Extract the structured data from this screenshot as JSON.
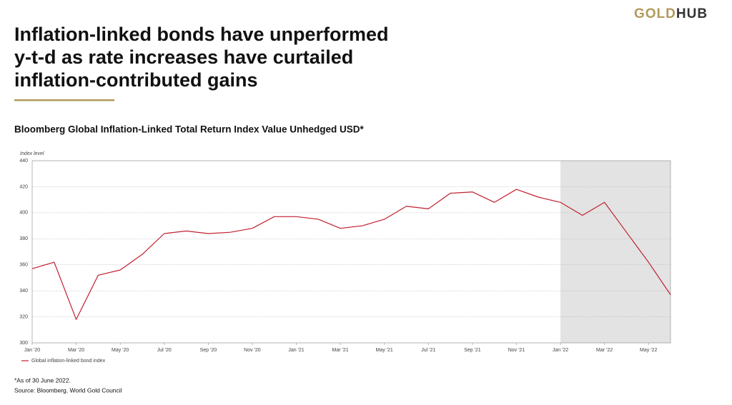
{
  "logo": [
    "GOLD",
    "HUB"
  ],
  "chart_data": {
    "type": "line",
    "title": [
      "Inflation-linked bonds have unperformed",
      "y-t-d as rate increases have curtailed",
      "inflation-contributed gains"
    ],
    "subtitle": "Bloomberg Global Inflation-Linked Total Return Index Value Unhedged USD*",
    "y_label": "Index level",
    "x": [
      "2020-01",
      "2020-02",
      "2020-03",
      "2020-04",
      "2020-05",
      "2020-06",
      "2020-07",
      "2020-08",
      "2020-09",
      "2020-10",
      "2020-11",
      "2020-12",
      "2021-01",
      "2021-02",
      "2021-03",
      "2021-04",
      "2021-05",
      "2021-06",
      "2021-07",
      "2021-08",
      "2021-09",
      "2021-10",
      "2021-11",
      "2021-12",
      "2022-01",
      "2022-02",
      "2022-03",
      "2022-04",
      "2022-05",
      "2022-06"
    ],
    "series": [
      {
        "name": "Global inflation-linked bond index",
        "color": "#c0202e",
        "values": [
          357,
          362,
          318,
          352,
          356,
          368,
          384,
          386,
          384,
          385,
          388,
          397,
          397,
          395,
          388,
          390,
          395,
          405,
          403,
          415,
          416,
          408,
          418,
          412,
          408,
          398,
          408,
          385,
          362,
          337
        ]
      }
    ],
    "xlim": [
      "2020-01",
      "2022-06"
    ],
    "xticks": [
      {
        "value": "2020-01",
        "label": "Jan '20"
      },
      {
        "value": "2020-03",
        "label": "Mar '20"
      },
      {
        "value": "2020-05",
        "label": "May '20"
      },
      {
        "value": "2020-07",
        "label": "Jul '20"
      },
      {
        "value": "2020-09",
        "label": "Sep '20"
      },
      {
        "value": "2020-11",
        "label": "Nov '20"
      },
      {
        "value": "2021-01",
        "label": "Jan '21"
      },
      {
        "value": "2021-03",
        "label": "Mar '21"
      },
      {
        "value": "2021-05",
        "label": "May '21"
      },
      {
        "value": "2021-07",
        "label": "Jul '21"
      },
      {
        "value": "2021-09",
        "label": "Sep '21"
      },
      {
        "value": "2021-11",
        "label": "Nov '21"
      },
      {
        "value": "2022-01",
        "label": "Jan '22"
      },
      {
        "value": "2022-03",
        "label": "Mar '22"
      },
      {
        "value": "2022-05",
        "label": "May '22"
      }
    ],
    "ylim": [
      300,
      440
    ],
    "yticks": [
      300,
      320,
      340,
      360,
      380,
      400,
      420,
      440
    ],
    "grid": true,
    "shade_from": "2022-01",
    "footnote": "*As of 30 June 2022.",
    "source": "Source: Bloomberg, World Gold Council"
  }
}
